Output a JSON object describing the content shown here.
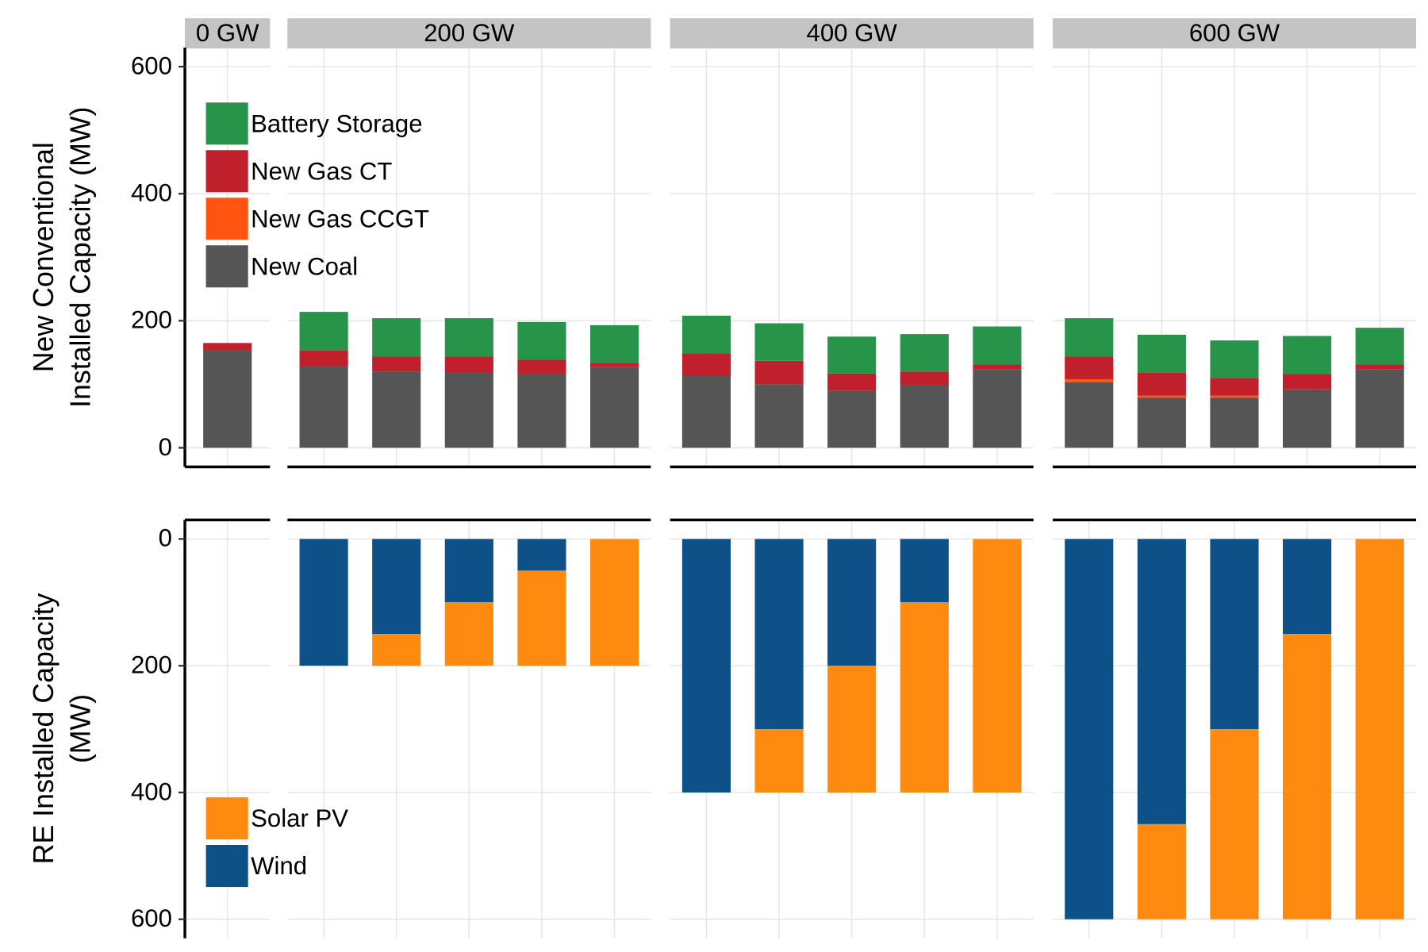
{
  "chart_data": [
    {
      "type": "bar",
      "stacked": true,
      "ylabel": [
        "New Conventional",
        "Installed Capacity (MW)"
      ],
      "facets": [
        "0 GW",
        "200 GW",
        "400 GW",
        "600 GW"
      ],
      "categories": [
        [
          null
        ],
        [
          null,
          null,
          null,
          null,
          null
        ],
        [
          null,
          null,
          null,
          null,
          null
        ],
        [
          null,
          null,
          null,
          null,
          null
        ]
      ],
      "series": [
        {
          "name": "New Coal",
          "color": "#555555",
          "values": [
            [
              153
            ],
            [
              128,
              120,
              118,
              116,
              127
            ],
            [
              113,
              100,
              90,
              98,
              124
            ],
            [
              103,
              79,
              79,
              92,
              124
            ]
          ]
        },
        {
          "name": "New Gas CCGT",
          "color": "#ff5510",
          "values": [
            [
              0
            ],
            [
              0,
              0,
              0,
              0,
              0
            ],
            [
              0,
              0,
              0,
              0,
              0
            ],
            [
              5,
              3,
              3,
              0,
              0
            ]
          ]
        },
        {
          "name": "New Gas CT",
          "color": "#c0202b",
          "values": [
            [
              12
            ],
            [
              25,
              24,
              26,
              23,
              7
            ],
            [
              36,
              37,
              27,
              22,
              7
            ],
            [
              36,
              36,
              28,
              24,
              7
            ]
          ]
        },
        {
          "name": "Battery Storage",
          "color": "#27944a",
          "values": [
            [
              0
            ],
            [
              61,
              60,
              60,
              59,
              59
            ],
            [
              59,
              59,
              58,
              59,
              60
            ],
            [
              60,
              60,
              59,
              60,
              58
            ]
          ]
        }
      ],
      "ylim": [
        -30,
        630
      ],
      "yticks": [
        0,
        200,
        400,
        600
      ],
      "grid": true,
      "legend": "top-left"
    },
    {
      "type": "bar",
      "stacked": true,
      "y_reversed": true,
      "ylabel": [
        "RE Installed Capacity",
        "(MW)"
      ],
      "categories": [
        [
          null
        ],
        [
          null,
          null,
          null,
          null,
          null
        ],
        [
          null,
          null,
          null,
          null,
          null
        ],
        [
          null,
          null,
          null,
          null,
          null
        ]
      ],
      "series": [
        {
          "name": "Wind",
          "color": "#0e5189",
          "values": [
            [
              0
            ],
            [
              200,
              150,
              100,
              50,
              0
            ],
            [
              400,
              300,
              200,
              100,
              0
            ],
            [
              600,
              450,
              300,
              150,
              0
            ]
          ]
        },
        {
          "name": "Solar PV",
          "color": "#fe8a10",
          "values": [
            [
              0
            ],
            [
              0,
              50,
              100,
              150,
              200
            ],
            [
              0,
              100,
              200,
              300,
              400
            ],
            [
              0,
              150,
              300,
              450,
              600
            ]
          ]
        }
      ],
      "ylim": [
        -30,
        630
      ],
      "yticks": [
        0,
        200,
        400,
        600
      ],
      "grid": true,
      "legend": "bottom-left"
    }
  ]
}
